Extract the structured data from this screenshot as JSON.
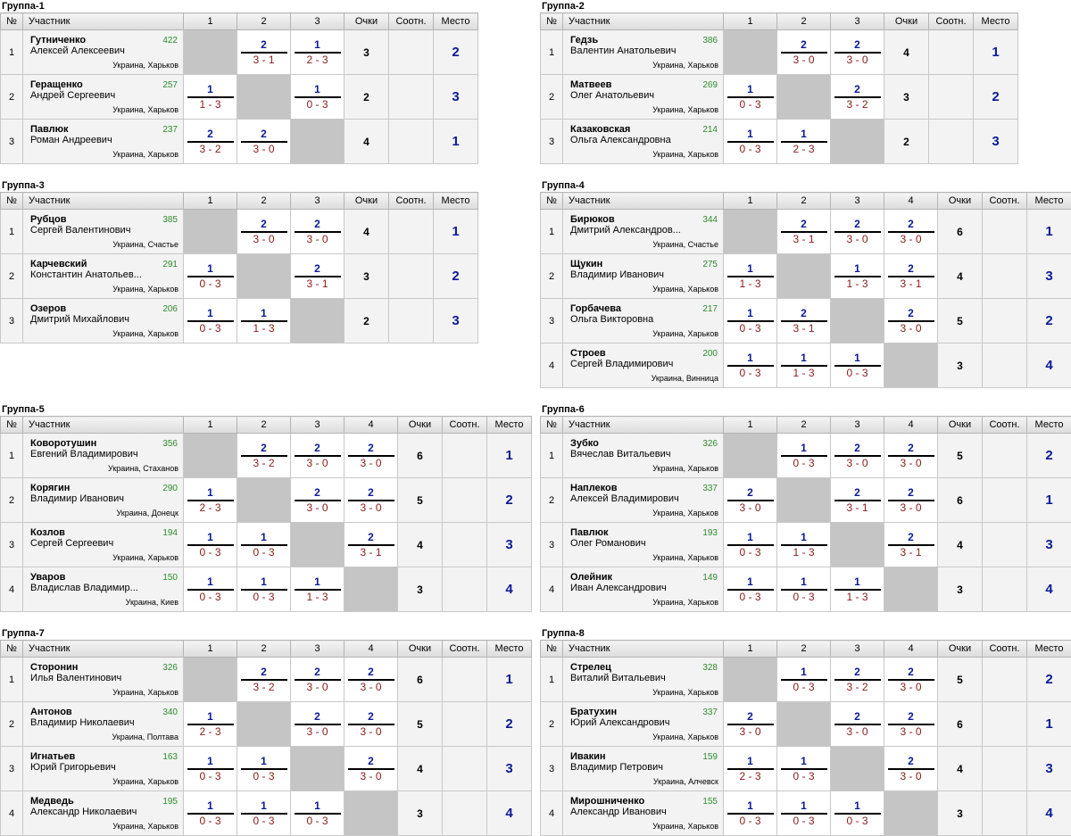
{
  "headers": {
    "num": "№",
    "participant": "Участник",
    "points": "Очки",
    "ratio": "Соотн.",
    "place": "Место"
  },
  "groups": [
    {
      "title": "Группа-1",
      "players": [
        {
          "last": "Гутниченко",
          "first": "Алексей Алексеевич",
          "rating": "422",
          "loc": "Украина, Харьков",
          "res": [
            null,
            {
              "w": "2",
              "s": "3 - 1"
            },
            {
              "w": "1",
              "s": "2 - 3"
            }
          ],
          "pts": "3",
          "ratio": "",
          "place": "2"
        },
        {
          "last": "Геращенко",
          "first": "Андрей Сергеевич",
          "rating": "257",
          "loc": "Украина, Харьков",
          "res": [
            {
              "w": "1",
              "s": "1 - 3"
            },
            null,
            {
              "w": "1",
              "s": "0 - 3"
            }
          ],
          "pts": "2",
          "ratio": "",
          "place": "3"
        },
        {
          "last": "Павлюк",
          "first": "Роман Андреевич",
          "rating": "237",
          "loc": "Украина, Харьков",
          "res": [
            {
              "w": "2",
              "s": "3 - 2"
            },
            {
              "w": "2",
              "s": "3 - 0"
            },
            null
          ],
          "pts": "4",
          "ratio": "",
          "place": "1"
        }
      ]
    },
    {
      "title": "Группа-2",
      "players": [
        {
          "last": "Гедзь",
          "first": "Валентин Анатольевич",
          "rating": "386",
          "loc": "Украина, Харьков",
          "res": [
            null,
            {
              "w": "2",
              "s": "3 - 0"
            },
            {
              "w": "2",
              "s": "3 - 0"
            }
          ],
          "pts": "4",
          "ratio": "",
          "place": "1"
        },
        {
          "last": "Матвеев",
          "first": "Олег Анатольевич",
          "rating": "269",
          "loc": "Украина, Харьков",
          "res": [
            {
              "w": "1",
              "s": "0 - 3"
            },
            null,
            {
              "w": "2",
              "s": "3 - 2"
            }
          ],
          "pts": "3",
          "ratio": "",
          "place": "2"
        },
        {
          "last": "Казаковская",
          "first": "Ольга Александровна",
          "rating": "214",
          "loc": "Украина, Харьков",
          "res": [
            {
              "w": "1",
              "s": "0 - 3"
            },
            {
              "w": "1",
              "s": "2 - 3"
            },
            null
          ],
          "pts": "2",
          "ratio": "",
          "place": "3"
        }
      ]
    },
    {
      "title": "Группа-3",
      "players": [
        {
          "last": "Рубцов",
          "first": "Сергей Валентинович",
          "rating": "385",
          "loc": "Украина, Счастье",
          "res": [
            null,
            {
              "w": "2",
              "s": "3 - 0"
            },
            {
              "w": "2",
              "s": "3 - 0"
            }
          ],
          "pts": "4",
          "ratio": "",
          "place": "1"
        },
        {
          "last": "Карчевский",
          "first": "Константин Анатольев...",
          "rating": "291",
          "loc": "Украина, Харьков",
          "res": [
            {
              "w": "1",
              "s": "0 - 3"
            },
            null,
            {
              "w": "2",
              "s": "3 - 1"
            }
          ],
          "pts": "3",
          "ratio": "",
          "place": "2"
        },
        {
          "last": "Озеров",
          "first": "Дмитрий Михайлович",
          "rating": "206",
          "loc": "Украина, Харьков",
          "res": [
            {
              "w": "1",
              "s": "0 - 3"
            },
            {
              "w": "1",
              "s": "1 - 3"
            },
            null
          ],
          "pts": "2",
          "ratio": "",
          "place": "3"
        }
      ]
    },
    {
      "title": "Группа-4",
      "players": [
        {
          "last": "Бирюков",
          "first": "Дмитрий Александров...",
          "rating": "344",
          "loc": "Украина, Счастье",
          "res": [
            null,
            {
              "w": "2",
              "s": "3 - 1"
            },
            {
              "w": "2",
              "s": "3 - 0"
            },
            {
              "w": "2",
              "s": "3 - 0"
            }
          ],
          "pts": "6",
          "ratio": "",
          "place": "1"
        },
        {
          "last": "Щукин",
          "first": "Владимир Иванович",
          "rating": "275",
          "loc": "Украина, Харьков",
          "res": [
            {
              "w": "1",
              "s": "1 - 3"
            },
            null,
            {
              "w": "1",
              "s": "1 - 3"
            },
            {
              "w": "2",
              "s": "3 - 1"
            }
          ],
          "pts": "4",
          "ratio": "",
          "place": "3"
        },
        {
          "last": "Горбачева",
          "first": "Ольга Викторовна",
          "rating": "217",
          "loc": "Украина, Харьков",
          "res": [
            {
              "w": "1",
              "s": "0 - 3"
            },
            {
              "w": "2",
              "s": "3 - 1"
            },
            null,
            {
              "w": "2",
              "s": "3 - 0"
            }
          ],
          "pts": "5",
          "ratio": "",
          "place": "2"
        },
        {
          "last": "Строев",
          "first": "Сергей Владимирович",
          "rating": "200",
          "loc": "Украина, Винница",
          "res": [
            {
              "w": "1",
              "s": "0 - 3"
            },
            {
              "w": "1",
              "s": "1 - 3"
            },
            {
              "w": "1",
              "s": "0 - 3"
            },
            null
          ],
          "pts": "3",
          "ratio": "",
          "place": "4"
        }
      ]
    },
    {
      "title": "Группа-5",
      "players": [
        {
          "last": "Коворотушин",
          "first": "Евгений Владимирович",
          "rating": "356",
          "loc": "Украина, Стаханов",
          "res": [
            null,
            {
              "w": "2",
              "s": "3 - 2"
            },
            {
              "w": "2",
              "s": "3 - 0"
            },
            {
              "w": "2",
              "s": "3 - 0"
            }
          ],
          "pts": "6",
          "ratio": "",
          "place": "1"
        },
        {
          "last": "Корягин",
          "first": "Владимир Иванович",
          "rating": "290",
          "loc": "Украина, Донецк",
          "res": [
            {
              "w": "1",
              "s": "2 - 3"
            },
            null,
            {
              "w": "2",
              "s": "3 - 0"
            },
            {
              "w": "2",
              "s": "3 - 0"
            }
          ],
          "pts": "5",
          "ratio": "",
          "place": "2"
        },
        {
          "last": "Козлов",
          "first": "Сергей Сергеевич",
          "rating": "194",
          "loc": "Украина, Харьков",
          "res": [
            {
              "w": "1",
              "s": "0 - 3"
            },
            {
              "w": "1",
              "s": "0 - 3"
            },
            null,
            {
              "w": "2",
              "s": "3 - 1"
            }
          ],
          "pts": "4",
          "ratio": "",
          "place": "3"
        },
        {
          "last": "Уваров",
          "first": "Владислав Владимир...",
          "rating": "150",
          "loc": "Украина, Киев",
          "res": [
            {
              "w": "1",
              "s": "0 - 3"
            },
            {
              "w": "1",
              "s": "0 - 3"
            },
            {
              "w": "1",
              "s": "1 - 3"
            },
            null
          ],
          "pts": "3",
          "ratio": "",
          "place": "4"
        }
      ]
    },
    {
      "title": "Группа-6",
      "players": [
        {
          "last": "Зубко",
          "first": "Вячеслав Витальевич",
          "rating": "326",
          "loc": "Украина, Харьков",
          "res": [
            null,
            {
              "w": "1",
              "s": "0 - 3"
            },
            {
              "w": "2",
              "s": "3 - 0"
            },
            {
              "w": "2",
              "s": "3 - 0"
            }
          ],
          "pts": "5",
          "ratio": "",
          "place": "2"
        },
        {
          "last": "Наплеков",
          "first": "Алексей Владимирович",
          "rating": "337",
          "loc": "Украина, Харьков",
          "res": [
            {
              "w": "2",
              "s": "3 - 0"
            },
            null,
            {
              "w": "2",
              "s": "3 - 1"
            },
            {
              "w": "2",
              "s": "3 - 0"
            }
          ],
          "pts": "6",
          "ratio": "",
          "place": "1"
        },
        {
          "last": "Павлюк",
          "first": "Олег Романович",
          "rating": "193",
          "loc": "Украина, Харьков",
          "res": [
            {
              "w": "1",
              "s": "0 - 3"
            },
            {
              "w": "1",
              "s": "1 - 3"
            },
            null,
            {
              "w": "2",
              "s": "3 - 1"
            }
          ],
          "pts": "4",
          "ratio": "",
          "place": "3"
        },
        {
          "last": "Олейник",
          "first": "Иван Александрович",
          "rating": "149",
          "loc": "Украина, Харьков",
          "res": [
            {
              "w": "1",
              "s": "0 - 3"
            },
            {
              "w": "1",
              "s": "0 - 3"
            },
            {
              "w": "1",
              "s": "1 - 3"
            },
            null
          ],
          "pts": "3",
          "ratio": "",
          "place": "4"
        }
      ]
    },
    {
      "title": "Группа-7",
      "players": [
        {
          "last": "Сторонин",
          "first": "Илья Валентинович",
          "rating": "326",
          "loc": "Украина, Харьков",
          "res": [
            null,
            {
              "w": "2",
              "s": "3 - 2"
            },
            {
              "w": "2",
              "s": "3 - 0"
            },
            {
              "w": "2",
              "s": "3 - 0"
            }
          ],
          "pts": "6",
          "ratio": "",
          "place": "1"
        },
        {
          "last": "Антонов",
          "first": "Владимир Николаевич",
          "rating": "340",
          "loc": "Украина, Полтава",
          "res": [
            {
              "w": "1",
              "s": "2 - 3"
            },
            null,
            {
              "w": "2",
              "s": "3 - 0"
            },
            {
              "w": "2",
              "s": "3 - 0"
            }
          ],
          "pts": "5",
          "ratio": "",
          "place": "2"
        },
        {
          "last": "Игнатьев",
          "first": "Юрий Григорьевич",
          "rating": "163",
          "loc": "Украина, Харьков",
          "res": [
            {
              "w": "1",
              "s": "0 - 3"
            },
            {
              "w": "1",
              "s": "0 - 3"
            },
            null,
            {
              "w": "2",
              "s": "3 - 0"
            }
          ],
          "pts": "4",
          "ratio": "",
          "place": "3"
        },
        {
          "last": "Медведь",
          "first": "Александр Николаевич",
          "rating": "195",
          "loc": "Украина, Харьков",
          "res": [
            {
              "w": "1",
              "s": "0 - 3"
            },
            {
              "w": "1",
              "s": "0 - 3"
            },
            {
              "w": "1",
              "s": "0 - 3"
            },
            null
          ],
          "pts": "3",
          "ratio": "",
          "place": "4"
        }
      ]
    },
    {
      "title": "Группа-8",
      "players": [
        {
          "last": "Стрелец",
          "first": "Виталий Витальевич",
          "rating": "328",
          "loc": "Украина, Харьков",
          "res": [
            null,
            {
              "w": "1",
              "s": "0 - 3"
            },
            {
              "w": "2",
              "s": "3 - 2"
            },
            {
              "w": "2",
              "s": "3 - 0"
            }
          ],
          "pts": "5",
          "ratio": "",
          "place": "2"
        },
        {
          "last": "Братухин",
          "first": "Юрий Александрович",
          "rating": "337",
          "loc": "Украина, Харьков",
          "res": [
            {
              "w": "2",
              "s": "3 - 0"
            },
            null,
            {
              "w": "2",
              "s": "3 - 0"
            },
            {
              "w": "2",
              "s": "3 - 0"
            }
          ],
          "pts": "6",
          "ratio": "",
          "place": "1"
        },
        {
          "last": "Ивакин",
          "first": "Владимир Петрович",
          "rating": "159",
          "loc": "Украина, Алчевск",
          "res": [
            {
              "w": "1",
              "s": "2 - 3"
            },
            {
              "w": "1",
              "s": "0 - 3"
            },
            null,
            {
              "w": "2",
              "s": "3 - 0"
            }
          ],
          "pts": "4",
          "ratio": "",
          "place": "3"
        },
        {
          "last": "Мирошниченко",
          "first": "Александр Иванович",
          "rating": "155",
          "loc": "Украина, Харьков",
          "res": [
            {
              "w": "1",
              "s": "0 - 3"
            },
            {
              "w": "1",
              "s": "0 - 3"
            },
            {
              "w": "1",
              "s": "0 - 3"
            },
            null
          ],
          "pts": "3",
          "ratio": "",
          "place": "4"
        }
      ]
    }
  ]
}
